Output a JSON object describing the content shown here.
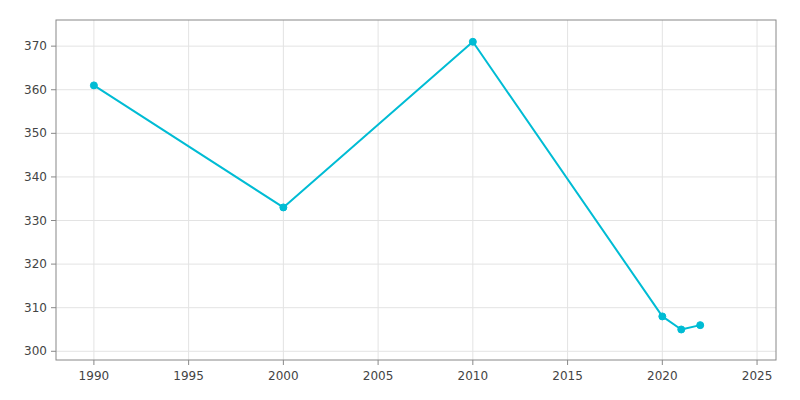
{
  "chart_data": {
    "type": "line",
    "x": [
      1990,
      2000,
      2010,
      2020,
      2021,
      2022
    ],
    "values": [
      361,
      333,
      371,
      308,
      305,
      306
    ],
    "color": "#00BCD4",
    "marker": "circle",
    "xlim": [
      1988,
      2026
    ],
    "ylim": [
      298,
      376
    ],
    "xticks": [
      1990,
      1995,
      2000,
      2005,
      2010,
      2015,
      2020,
      2025
    ],
    "yticks": [
      300,
      310,
      320,
      330,
      340,
      350,
      360,
      370
    ],
    "grid": true
  }
}
